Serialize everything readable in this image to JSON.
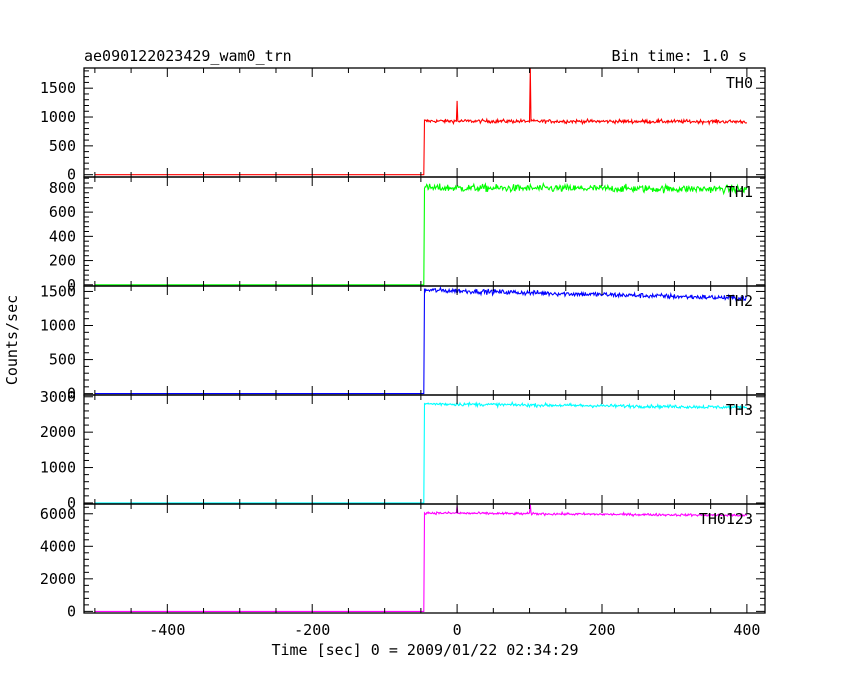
{
  "chart_data": {
    "type": "line",
    "title": "ae090122023429_wam0_trn",
    "bin_time_label": "Bin time: 1.0 s",
    "xlabel": "Time [sec] 0 = 2009/01/22 02:34:29",
    "ylabel": "Counts/sec",
    "xlim": [
      -515,
      425
    ],
    "xticks": [
      -400,
      -200,
      0,
      200,
      400
    ],
    "x_start": -500,
    "x_end": 400,
    "step_time": -45,
    "panels": [
      {
        "name": "TH0",
        "color": "#ff0000",
        "ylim": [
          -40,
          1850
        ],
        "yticks": [
          0,
          500,
          1000,
          1500
        ],
        "baseline": 0,
        "level_after": 930,
        "level_end": 920,
        "noise": 30,
        "spikes": [
          {
            "x": 0,
            "y": 1280
          },
          {
            "x": 101,
            "y": 1850
          }
        ]
      },
      {
        "name": "TH1",
        "color": "#00ff00",
        "ylim": [
          -10,
          890
        ],
        "yticks": [
          0,
          200,
          400,
          600,
          800
        ],
        "baseline": 0,
        "level_after": 800,
        "level_end": 790,
        "noise": 30,
        "spikes": []
      },
      {
        "name": "TH2",
        "color": "#0000ff",
        "ylim": [
          -20,
          1580
        ],
        "yticks": [
          0,
          500,
          1000,
          1500
        ],
        "baseline": 0,
        "level_after": 1520,
        "level_end": 1400,
        "noise": 35,
        "spikes": []
      },
      {
        "name": "TH3",
        "color": "#00ffff",
        "ylim": [
          -30,
          3050
        ],
        "yticks": [
          0,
          1000,
          2000,
          3000
        ],
        "baseline": 0,
        "level_after": 2800,
        "level_end": 2700,
        "noise": 45,
        "spikes": []
      },
      {
        "name": "TH0123",
        "color": "#ff00ff",
        "ylim": [
          -100,
          6600
        ],
        "yticks": [
          0,
          2000,
          4000,
          6000
        ],
        "baseline": 0,
        "level_after": 6050,
        "level_end": 5900,
        "noise": 70,
        "spikes": [
          {
            "x": 0,
            "y": 6500
          },
          {
            "x": 101,
            "y": 6700
          }
        ]
      }
    ]
  }
}
